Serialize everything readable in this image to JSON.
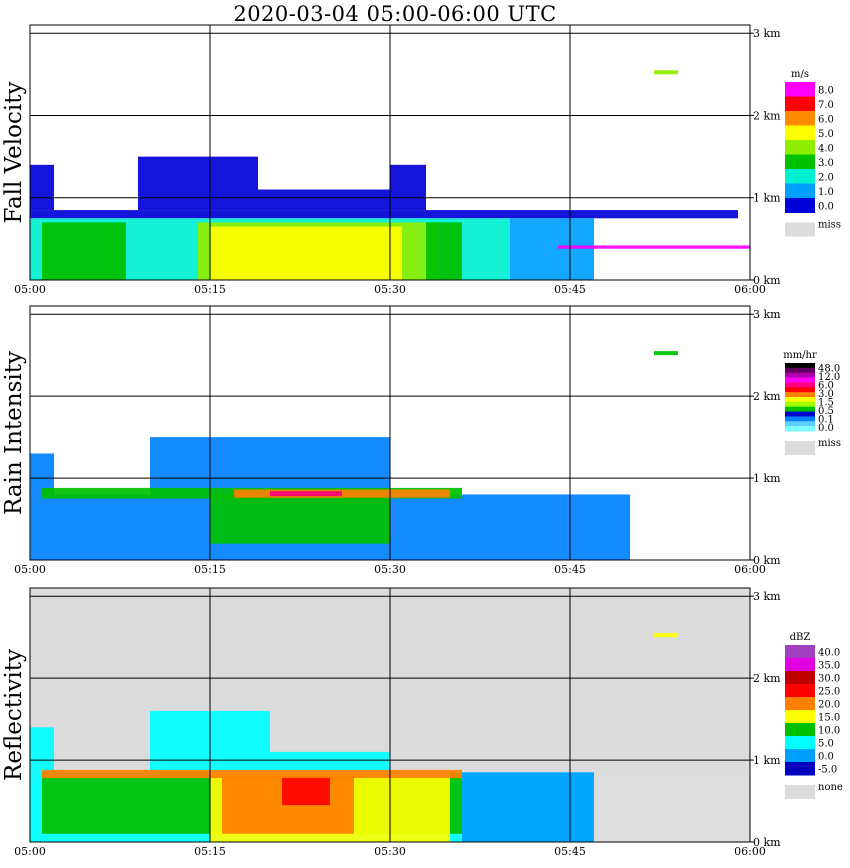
{
  "title": "2020-03-04   05:00-06:00 UTC",
  "time_ticks": [
    "05:00",
    "05:15",
    "05:30",
    "05:45",
    "06:00"
  ],
  "height_ticks": [
    "0 km",
    "1 km",
    "2 km",
    "3 km"
  ],
  "colors": {
    "missing": "#dcdcdc",
    "background": "#ffffff"
  },
  "chart_data": [
    {
      "type": "heatmap",
      "title": "Fall Velocity",
      "xlim": [
        "05:00",
        "06:00"
      ],
      "ylim": [
        0,
        3.1
      ],
      "y_unit": "km",
      "grid": true,
      "legend": {
        "unit": "m/s",
        "labels": [
          "8.0",
          "7.0",
          "6.0",
          "5.0",
          "4.0",
          "3.0",
          "2.0",
          "1.0",
          "0.0"
        ],
        "colors": [
          "#ff00ff",
          "#ff0000",
          "#ff8c00",
          "#ffff00",
          "#90ee00",
          "#00c000",
          "#00f0d0",
          "#00a0ff",
          "#0000d8"
        ],
        "missing_label": "miss"
      },
      "regions": [
        {
          "t0": 0,
          "t1": 59,
          "h0": 0.75,
          "h1": 0.85,
          "level": "0.0"
        },
        {
          "t0": 0,
          "t1": 2,
          "h0": 0.85,
          "h1": 1.4,
          "level": "0.0"
        },
        {
          "t0": 9,
          "t1": 19,
          "h0": 0.85,
          "h1": 1.5,
          "level": "0.0"
        },
        {
          "t0": 19,
          "t1": 30,
          "h0": 0.85,
          "h1": 1.1,
          "level": "0.0"
        },
        {
          "t0": 30,
          "t1": 33,
          "h0": 0.85,
          "h1": 1.4,
          "level": "0.0"
        },
        {
          "t0": 0,
          "t1": 40,
          "h0": 0.0,
          "h1": 0.75,
          "level": "2.0"
        },
        {
          "t0": 40,
          "t1": 47,
          "h0": 0.0,
          "h1": 0.75,
          "level": "1.0"
        },
        {
          "t0": 1,
          "t1": 8,
          "h0": 0.0,
          "h1": 0.7,
          "level": "3.0"
        },
        {
          "t0": 14,
          "t1": 34,
          "h0": 0.0,
          "h1": 0.7,
          "level": "4.0"
        },
        {
          "t0": 15,
          "t1": 31,
          "h0": 0.0,
          "h1": 0.65,
          "level": "5.0"
        },
        {
          "t0": 33,
          "t1": 36,
          "h0": 0.0,
          "h1": 0.7,
          "level": "3.0"
        },
        {
          "t0": 44,
          "t1": 60,
          "h0": 0.38,
          "h1": 0.42,
          "level": "8.0"
        },
        {
          "t0": 52,
          "t1": 54,
          "h0": 2.5,
          "h1": 2.55,
          "level": "4.0"
        }
      ]
    },
    {
      "type": "heatmap",
      "title": "Rain Intensity",
      "xlim": [
        "05:00",
        "06:00"
      ],
      "ylim": [
        0,
        3.1
      ],
      "y_unit": "km",
      "grid": true,
      "legend": {
        "unit": "mm/hr",
        "labels": [
          "48.0",
          "12.0",
          "6.0",
          "3.0",
          "1.5",
          "0.5",
          "0.1",
          "0.0"
        ],
        "colors": [
          "#000000",
          "#600060",
          "#b000b0",
          "#ff00ff",
          "#ff0080",
          "#ff0000",
          "#ff8000",
          "#ffff00",
          "#a0ff00",
          "#00c000",
          "#0000d0",
          "#0080ff",
          "#60d0ff",
          "#80ffff"
        ],
        "missing_label": "miss"
      },
      "regions": [
        {
          "t0": 0,
          "t1": 50,
          "h0": 0.0,
          "h1": 0.8,
          "level": "0.1"
        },
        {
          "t0": 0,
          "t1": 2,
          "h0": 0.8,
          "h1": 1.3,
          "level": "0.1"
        },
        {
          "t0": 10,
          "t1": 30,
          "h0": 0.8,
          "h1": 1.5,
          "level": "0.1"
        },
        {
          "t0": 15,
          "t1": 30,
          "h0": 0.2,
          "h1": 0.8,
          "level": "0.5"
        },
        {
          "t0": 1,
          "t1": 36,
          "h0": 0.75,
          "h1": 0.88,
          "level": "0.5"
        },
        {
          "t0": 17,
          "t1": 35,
          "h0": 0.76,
          "h1": 0.86,
          "level": "3.0"
        },
        {
          "t0": 20,
          "t1": 26,
          "h0": 0.78,
          "h1": 0.84,
          "level": "6.0"
        },
        {
          "t0": 52,
          "t1": 54,
          "h0": 2.5,
          "h1": 2.55,
          "level": "0.5"
        }
      ]
    },
    {
      "type": "heatmap",
      "title": "Reflectivity",
      "xlim": [
        "05:00",
        "06:00"
      ],
      "ylim": [
        0,
        3.1
      ],
      "y_unit": "km",
      "grid": true,
      "legend": {
        "unit": "dBZ",
        "labels": [
          "40.0",
          "35.0",
          "30.0",
          "25.0",
          "20.0",
          "15.0",
          "10.0",
          "5.0",
          "0.0",
          "-5.0"
        ],
        "colors": [
          "#a040c0",
          "#e000e0",
          "#c00000",
          "#ff0000",
          "#ff8000",
          "#ffff00",
          "#00c000",
          "#00ffff",
          "#00a0ff",
          "#0000c0"
        ],
        "missing_label": "none"
      },
      "regions": [
        {
          "t0": 0,
          "t1": 47,
          "h0": 0.0,
          "h1": 0.85,
          "level": "5.0"
        },
        {
          "t0": 0,
          "t1": 2,
          "h0": 0.85,
          "h1": 1.4,
          "level": "5.0"
        },
        {
          "t0": 10,
          "t1": 20,
          "h0": 0.85,
          "h1": 1.6,
          "level": "5.0"
        },
        {
          "t0": 20,
          "t1": 30,
          "h0": 0.85,
          "h1": 1.1,
          "level": "5.0"
        },
        {
          "t0": 1,
          "t1": 36,
          "h0": 0.1,
          "h1": 0.85,
          "level": "10.0"
        },
        {
          "t0": 15,
          "t1": 35,
          "h0": 0.0,
          "h1": 0.85,
          "level": "15.0"
        },
        {
          "t0": 16,
          "t1": 27,
          "h0": 0.1,
          "h1": 0.8,
          "level": "20.0"
        },
        {
          "t0": 21,
          "t1": 25,
          "h0": 0.45,
          "h1": 0.8,
          "level": "25.0"
        },
        {
          "t0": 1,
          "t1": 36,
          "h0": 0.78,
          "h1": 0.88,
          "level": "20.0"
        },
        {
          "t0": 36,
          "t1": 47,
          "h0": 0.0,
          "h1": 0.85,
          "level": "0.0"
        },
        {
          "t0": 47,
          "t1": 60,
          "h0": 0.0,
          "h1": 0.8,
          "level": "none"
        },
        {
          "t0": 52,
          "t1": 54,
          "h0": 2.5,
          "h1": 2.55,
          "level": "15.0"
        }
      ]
    }
  ]
}
